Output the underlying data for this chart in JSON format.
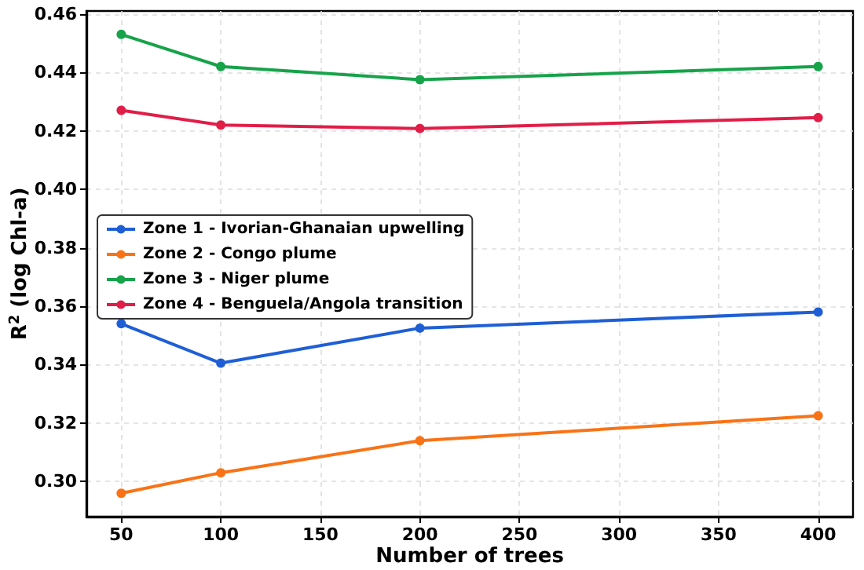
{
  "chart_data": {
    "type": "line",
    "xlabel": "Number of trees",
    "ylabel": "R$^{2}$ (log Chl-a)",
    "x": [
      50,
      100,
      200,
      400
    ],
    "series": [
      {
        "name": "Zone 1 - Ivorian-Ghanaian upwelling",
        "color": "#1f5fd6",
        "values": [
          0.354,
          0.3405,
          0.3525,
          0.358
        ]
      },
      {
        "name": "Zone 2 - Congo plume",
        "color": "#f97316",
        "values": [
          0.296,
          0.303,
          0.314,
          0.3225
        ]
      },
      {
        "name": "Zone 3 - Niger plume",
        "color": "#16a34a",
        "values": [
          0.453,
          0.442,
          0.4375,
          0.442
        ]
      },
      {
        "name": "Zone 4 - Benguela/Angola transition",
        "color": "#e11d48",
        "values": [
          0.427,
          0.422,
          0.4208,
          0.4245
        ]
      }
    ],
    "xlim": [
      32.5,
      417.5
    ],
    "xticks": [
      50,
      100,
      150,
      200,
      250,
      300,
      350,
      400
    ],
    "ylim": [
      0.288,
      0.461
    ],
    "yticks": [
      {
        "value": 0.3,
        "label": "0.30"
      },
      0.32,
      0.34,
      0.36,
      0.38,
      {
        "value": 0.4,
        "label": "0.40"
      },
      0.42,
      0.44,
      0.46
    ],
    "grid": true,
    "legend": "center left",
    "marker": "circle",
    "line_style": "solid"
  }
}
